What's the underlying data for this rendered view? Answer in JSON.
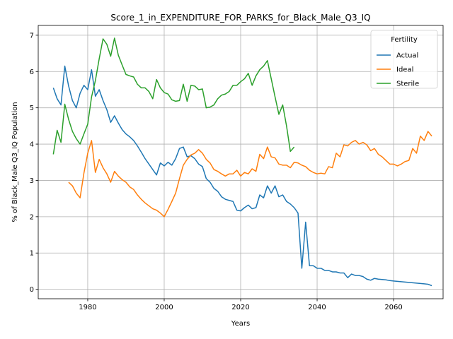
{
  "chart_data": {
    "type": "line",
    "title": "Score_1_in_EXPENDITURE_FOR_PARKS_for_Black_Male_Q3_IQ",
    "xlabel": "Years",
    "ylabel": "% of Black_Male Q3_IQ Population",
    "xlim": [
      1967.05,
      2072.95
    ],
    "ylim": [
      -0.26,
      7.27
    ],
    "xticks": [
      1980,
      2000,
      2020,
      2040,
      2060
    ],
    "yticks": [
      0,
      1,
      2,
      3,
      4,
      5,
      6,
      7
    ],
    "grid": true,
    "legend": {
      "title": "Fertility",
      "position": "top-right"
    },
    "series": [
      {
        "name": "Actual",
        "color": "#1f77b4",
        "x": [
          1971,
          1972,
          1973,
          1974,
          1975,
          1976,
          1977,
          1978,
          1979,
          1980,
          1981,
          1982,
          1983,
          1984,
          1985,
          1986,
          1987,
          1988,
          1989,
          1990,
          1991,
          1992,
          1993,
          1994,
          1995,
          1996,
          1997,
          1998,
          1999,
          2000,
          2001,
          2002,
          2003,
          2004,
          2005,
          2006,
          2007,
          2008,
          2009,
          2010,
          2011,
          2012,
          2013,
          2014,
          2015,
          2016,
          2017,
          2018,
          2019,
          2020,
          2021,
          2022,
          2023,
          2024,
          2025,
          2026,
          2027,
          2028,
          2029,
          2030,
          2031,
          2032,
          2033,
          2034,
          2035,
          2036,
          2037,
          2038,
          2039,
          2040,
          2041,
          2042,
          2043,
          2044,
          2045,
          2046,
          2047,
          2048,
          2049,
          2050,
          2051,
          2052,
          2053,
          2054,
          2055,
          2056,
          2057,
          2058,
          2059,
          2060,
          2061,
          2062,
          2063,
          2064,
          2065,
          2066,
          2067,
          2068,
          2069,
          2070
        ],
        "y": [
          5.55,
          5.25,
          5.08,
          6.15,
          5.6,
          5.2,
          5.0,
          5.4,
          5.62,
          5.5,
          6.05,
          5.32,
          5.5,
          5.2,
          4.95,
          4.6,
          4.78,
          4.58,
          4.4,
          4.28,
          4.2,
          4.1,
          3.95,
          3.78,
          3.6,
          3.45,
          3.3,
          3.15,
          3.48,
          3.4,
          3.5,
          3.42,
          3.6,
          3.88,
          3.92,
          3.65,
          3.68,
          3.6,
          3.45,
          3.38,
          3.05,
          2.95,
          2.78,
          2.7,
          2.55,
          2.48,
          2.45,
          2.42,
          2.18,
          2.16,
          2.25,
          2.32,
          2.22,
          2.25,
          2.6,
          2.52,
          2.85,
          2.65,
          2.85,
          2.55,
          2.6,
          2.42,
          2.35,
          2.25,
          2.1,
          0.58,
          1.85,
          0.65,
          0.65,
          0.58,
          0.58,
          0.52,
          0.52,
          0.48,
          0.48,
          0.45,
          0.45,
          0.32,
          0.42,
          0.38,
          0.38,
          0.35,
          0.28,
          0.25,
          0.3,
          0.28,
          0.27,
          0.26,
          0.24,
          0.23,
          0.22,
          0.21,
          0.2,
          0.19,
          0.18,
          0.17,
          0.16,
          0.15,
          0.14,
          0.1
        ]
      },
      {
        "name": "Ideal",
        "color": "#ff7f0e",
        "x": [
          1975,
          1976,
          1977,
          1978,
          1979,
          1980,
          1981,
          1982,
          1983,
          1984,
          1985,
          1986,
          1987,
          1988,
          1989,
          1990,
          1991,
          1992,
          1993,
          1994,
          1995,
          1996,
          1997,
          1998,
          1999,
          2000,
          2001,
          2002,
          2003,
          2004,
          2005,
          2006,
          2007,
          2008,
          2009,
          2010,
          2011,
          2012,
          2013,
          2014,
          2015,
          2016,
          2017,
          2018,
          2019,
          2020,
          2021,
          2022,
          2023,
          2024,
          2025,
          2026,
          2027,
          2028,
          2029,
          2030,
          2031,
          2032,
          2033,
          2034,
          2035,
          2036,
          2037,
          2038,
          2039,
          2040,
          2041,
          2042,
          2043,
          2044,
          2045,
          2046,
          2047,
          2048,
          2049,
          2050,
          2051,
          2052,
          2053,
          2054,
          2055,
          2056,
          2057,
          2058,
          2059,
          2060,
          2061,
          2062,
          2063,
          2064,
          2065,
          2066,
          2067,
          2068,
          2069,
          2070
        ],
        "y": [
          2.95,
          2.85,
          2.65,
          2.52,
          3.2,
          3.75,
          4.1,
          3.22,
          3.58,
          3.35,
          3.18,
          2.95,
          3.25,
          3.12,
          3.02,
          2.95,
          2.82,
          2.75,
          2.6,
          2.48,
          2.38,
          2.3,
          2.22,
          2.18,
          2.1,
          2.0,
          2.2,
          2.42,
          2.65,
          3.05,
          3.42,
          3.58,
          3.7,
          3.75,
          3.85,
          3.75,
          3.58,
          3.48,
          3.3,
          3.25,
          3.18,
          3.12,
          3.18,
          3.18,
          3.28,
          3.12,
          3.22,
          3.18,
          3.32,
          3.25,
          3.72,
          3.6,
          3.92,
          3.65,
          3.62,
          3.45,
          3.42,
          3.42,
          3.35,
          3.5,
          3.48,
          3.42,
          3.38,
          3.28,
          3.22,
          3.18,
          3.2,
          3.18,
          3.38,
          3.35,
          3.75,
          3.65,
          3.98,
          3.95,
          4.05,
          4.1,
          4.0,
          4.05,
          3.98,
          3.82,
          3.88,
          3.72,
          3.65,
          3.55,
          3.45,
          3.45,
          3.4,
          3.45,
          3.52,
          3.55,
          3.88,
          3.75,
          4.22,
          4.1,
          4.35,
          4.22
        ]
      },
      {
        "name": "Sterile",
        "color": "#2ca02c",
        "x": [
          1971,
          1972,
          1973,
          1974,
          1975,
          1976,
          1977,
          1978,
          1979,
          1980,
          1981,
          1982,
          1983,
          1984,
          1985,
          1986,
          1987,
          1988,
          1989,
          1990,
          1991,
          1992,
          1993,
          1994,
          1995,
          1996,
          1997,
          1998,
          1999,
          2000,
          2001,
          2002,
          2003,
          2004,
          2005,
          2006,
          2007,
          2008,
          2009,
          2010,
          2011,
          2012,
          2013,
          2014,
          2015,
          2016,
          2017,
          2018,
          2019,
          2020,
          2021,
          2022,
          2023,
          2024,
          2025,
          2026,
          2027,
          2028,
          2029,
          2030,
          2031,
          2032,
          2033,
          2034
        ],
        "y": [
          3.72,
          4.38,
          4.05,
          5.1,
          4.68,
          4.35,
          4.15,
          4.0,
          4.28,
          4.55,
          5.3,
          5.75,
          6.35,
          6.9,
          6.75,
          6.42,
          6.92,
          6.45,
          6.18,
          5.92,
          5.88,
          5.85,
          5.65,
          5.55,
          5.55,
          5.45,
          5.25,
          5.78,
          5.55,
          5.42,
          5.38,
          5.22,
          5.18,
          5.2,
          5.65,
          5.18,
          5.62,
          5.6,
          5.5,
          5.52,
          5.0,
          5.02,
          5.08,
          5.25,
          5.35,
          5.38,
          5.45,
          5.62,
          5.62,
          5.72,
          5.8,
          5.95,
          5.62,
          5.88,
          6.05,
          6.15,
          6.3,
          5.8,
          5.3,
          4.82,
          5.08,
          4.5,
          3.8,
          3.92
        ]
      }
    ]
  }
}
